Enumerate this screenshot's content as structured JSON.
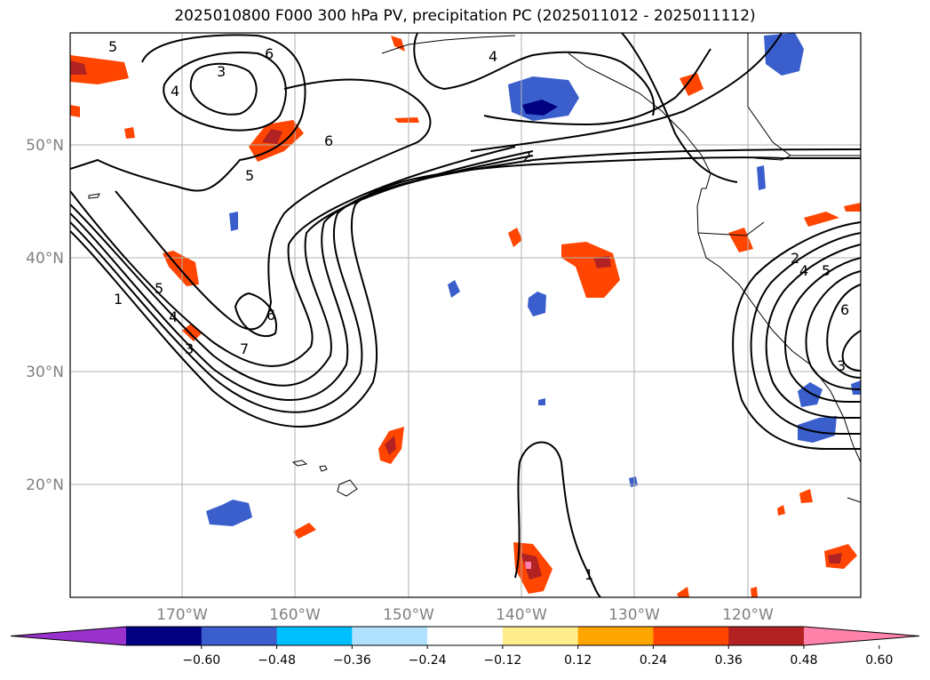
{
  "title": "2025010800 F000 300 hPa PV, precipitation PC (2025011012 - 2025011112)",
  "lat_labels": [
    "50°N",
    "40°N",
    "30°N",
    "20°N"
  ],
  "lon_labels": [
    "170°W",
    "160°W",
    "150°W",
    "140°W",
    "130°W",
    "120°W"
  ],
  "contour_labels": [
    "1",
    "2",
    "3",
    "4",
    "5",
    "6",
    "7"
  ],
  "colorbar": {
    "ticks": [
      "−0.60",
      "−0.48",
      "−0.36",
      "−0.24",
      "−0.12",
      "0.12",
      "0.24",
      "0.36",
      "0.48",
      "0.60"
    ],
    "colors": [
      "#9932cc",
      "#000080",
      "#3a5fcd",
      "#00bfff",
      "#b0e2ff",
      "#ffffff",
      "#ffec8b",
      "#ffa500",
      "#ff4500",
      "#b22222",
      "#ff82ab"
    ]
  }
}
